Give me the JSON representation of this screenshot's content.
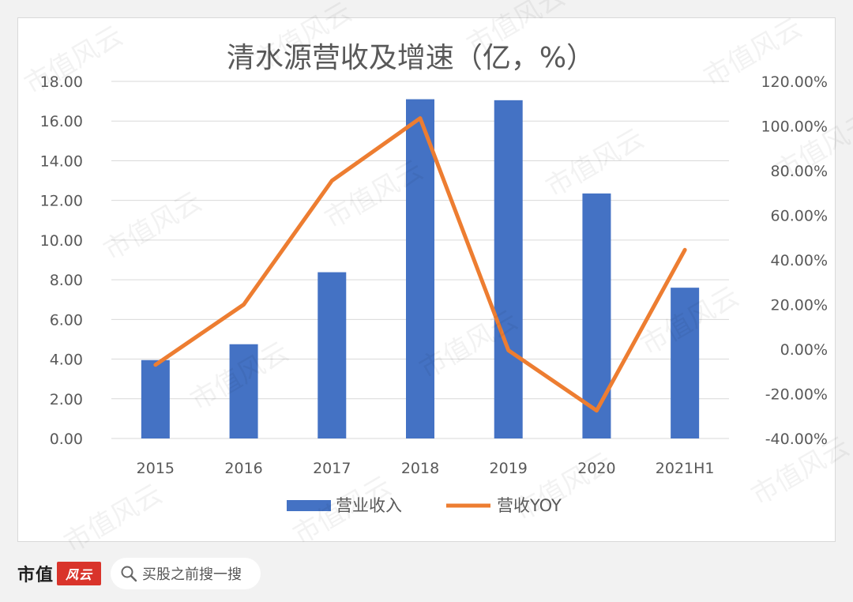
{
  "chart_data": {
    "type": "bar+line",
    "title": "清水源营收及增速（亿，%）",
    "categories": [
      "2015",
      "2016",
      "2017",
      "2018",
      "2019",
      "2020",
      "2021H1"
    ],
    "series": [
      {
        "name": "营业收入",
        "type": "bar",
        "axis": "left",
        "color": "#4472c4",
        "values": [
          3.95,
          4.75,
          8.38,
          17.1,
          17.05,
          12.35,
          7.6
        ]
      },
      {
        "name": "营收YOY",
        "type": "line",
        "axis": "right",
        "color": "#ed7d31",
        "values": [
          -7.0,
          20.0,
          75.5,
          103.5,
          -0.5,
          -27.5,
          44.5
        ]
      }
    ],
    "y_left": {
      "min": 0,
      "max": 18,
      "step": 2,
      "ticks": [
        "0.00",
        "2.00",
        "4.00",
        "6.00",
        "8.00",
        "10.00",
        "12.00",
        "14.00",
        "16.00",
        "18.00"
      ]
    },
    "y_right": {
      "min": -40,
      "max": 120,
      "step": 20,
      "ticks": [
        "-40.00%",
        "-20.00%",
        "0.00%",
        "20.00%",
        "40.00%",
        "60.00%",
        "80.00%",
        "100.00%",
        "120.00%"
      ]
    },
    "grid": true,
    "legend_position": "bottom"
  },
  "footer": {
    "brand_text": "市值",
    "brand_seal_text": "风云",
    "search_text": "买股之前搜一搜"
  },
  "watermark": "市值风云",
  "colors": {
    "bar": "#4472c4",
    "line": "#ed7d31",
    "grid": "#d9d9d9",
    "axis_text": "#595959",
    "title": "#595959",
    "brand_red": "#d9342b"
  }
}
